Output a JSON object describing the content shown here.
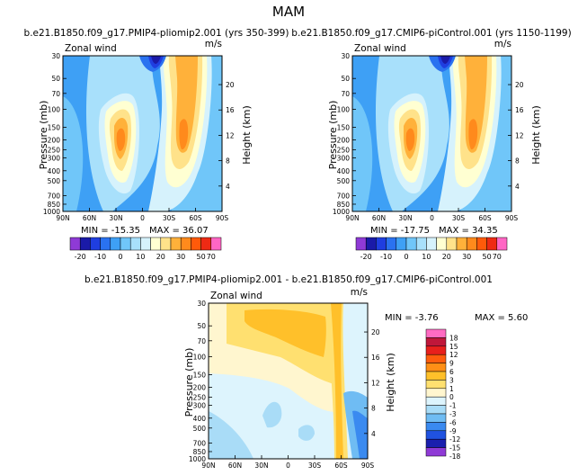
{
  "figure_title": "MAM",
  "chart_data": [
    {
      "type": "contour",
      "title": "b.e21.B1850.f09_g17.PMIP4-pliomip2.001 (yrs 350-399)",
      "left_label": "Zonal wind",
      "units": "m/s",
      "ylabel": "Pressure (mb)",
      "ylabel_right": "Height (km)",
      "x_ticks": [
        "90N",
        "60N",
        "30N",
        "0",
        "30S",
        "60S",
        "90S"
      ],
      "y_ticks": [
        "30",
        "50",
        "70",
        "100",
        "150",
        "200",
        "250",
        "300",
        "400",
        "500",
        "700",
        "850",
        "1000"
      ],
      "height_ticks": [
        "4",
        "8",
        "12",
        "16",
        "20"
      ],
      "min_label": "MIN = -15.35",
      "max_label": "MAX = 36.07",
      "min": -15.35,
      "max": 36.07,
      "colorbar_labels": [
        "-20",
        "-10",
        "0",
        "10",
        "20",
        "30",
        "50",
        "70"
      ]
    },
    {
      "type": "contour",
      "title": "b.e21.B1850.f09_g17.CMIP6-piControl.001 (yrs 1150-1199)",
      "left_label": "Zonal wind",
      "units": "m/s",
      "ylabel": "Pressure (mb)",
      "ylabel_right": "Height (km)",
      "x_ticks": [
        "90N",
        "60N",
        "30N",
        "0",
        "30S",
        "60S",
        "90S"
      ],
      "y_ticks": [
        "30",
        "50",
        "70",
        "100",
        "150",
        "200",
        "250",
        "300",
        "400",
        "500",
        "700",
        "850",
        "1000"
      ],
      "height_ticks": [
        "4",
        "8",
        "12",
        "16",
        "20"
      ],
      "min_label": "MIN = -17.75",
      "max_label": "MAX = 34.35",
      "min": -17.75,
      "max": 34.35,
      "colorbar_labels": [
        "-20",
        "-10",
        "0",
        "10",
        "20",
        "30",
        "50",
        "70"
      ]
    },
    {
      "type": "contour",
      "title": "b.e21.B1850.f09_g17.PMIP4-pliomip2.001 - b.e21.B1850.f09_g17.CMIP6-piControl.001",
      "left_label": "Zonal wind",
      "units": "m/s",
      "ylabel": "Pressure (mb)",
      "ylabel_right": "Height (km)",
      "x_ticks": [
        "90N",
        "60N",
        "30N",
        "0",
        "30S",
        "60S",
        "90S"
      ],
      "y_ticks": [
        "30",
        "50",
        "70",
        "100",
        "150",
        "200",
        "250",
        "300",
        "400",
        "500",
        "700",
        "850",
        "1000"
      ],
      "height_ticks": [
        "4",
        "8",
        "12",
        "16",
        "20"
      ],
      "min_label": "MIN = -3.76",
      "max_label": "MAX = 5.60",
      "min": -3.76,
      "max": 5.6,
      "colorbar_labels": [
        "18",
        "15",
        "12",
        "9",
        "6",
        "3",
        "1",
        "0",
        "-1",
        "-3",
        "-6",
        "-9",
        "-12",
        "-15",
        "-18"
      ]
    }
  ],
  "colors": {
    "wind": [
      "#8f3ad6",
      "#1a1aa8",
      "#1f3ee0",
      "#2a72f0",
      "#3ea0f5",
      "#70c6f9",
      "#a8e0fb",
      "#d6f2fc",
      "#ffffd2",
      "#ffe28a",
      "#ffb13a",
      "#ff8a1c",
      "#ff5a0a",
      "#ee2a14",
      "#ff66c4"
    ],
    "diff": [
      "#ff6bc2",
      "#c0173a",
      "#e8201c",
      "#ff5c0d",
      "#ff8f16",
      "#ffc02a",
      "#ffe070",
      "#fff6cf",
      "#ddf4fd",
      "#a9dcf7",
      "#6fbcf3",
      "#3a8af0",
      "#2052e0",
      "#1a1fae",
      "#8f3ad6"
    ]
  }
}
